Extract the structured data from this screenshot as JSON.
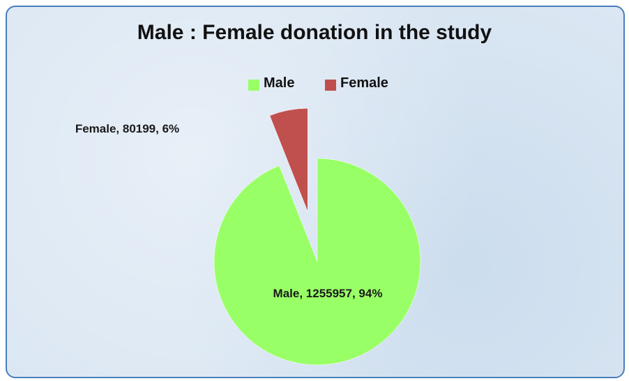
{
  "chart_data": {
    "type": "pie",
    "title": "Male : Female donation in the study",
    "categories": [
      "Male",
      "Female"
    ],
    "values": [
      1255957,
      80199
    ],
    "value_labels": [
      "Male, 1255957, 94%",
      "Female, 80199, 6%"
    ],
    "colors": [
      "#99ff66",
      "#c0504d"
    ],
    "exploded": "Female",
    "legend": "top"
  }
}
